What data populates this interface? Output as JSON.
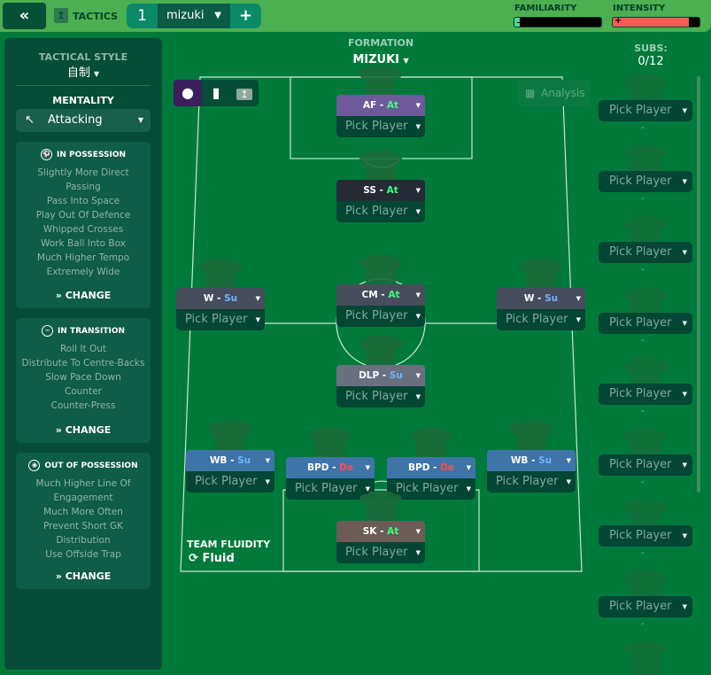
{
  "topbar": {
    "back_icon": "double-chevron-left",
    "tactics_label": "TACTICS",
    "tab_number": "1",
    "tab_name": "mizuki",
    "add_label": "+",
    "familiarity_label": "FAMILIARITY",
    "familiarity_level": 0.06,
    "intensity_label": "INTENSITY",
    "intensity_level": 0.88,
    "familiarity_color": "#4fd6a0",
    "intensity_color": "#ff5a5a"
  },
  "left": {
    "style_label": "TACTICAL STYLE",
    "style_value": "自制",
    "mentality_label": "MENTALITY",
    "mentality_value": "Attacking",
    "sections": [
      {
        "title": "IN POSSESSION",
        "items": [
          "Slightly More Direct",
          "Passing",
          "Pass Into Space",
          "Play Out Of Defence",
          "Whipped Crosses",
          "Work Ball Into Box",
          "Much Higher Tempo",
          "Extremely Wide"
        ],
        "change": "CHANGE"
      },
      {
        "title": "IN TRANSITION",
        "items": [
          "Roll It Out",
          "Distribute To Centre-Backs",
          "Slow Pace Down",
          "Counter",
          "Counter-Press"
        ],
        "change": "CHANGE"
      },
      {
        "title": "OUT OF POSSESSION",
        "items": [
          "Much Higher Line Of",
          "Engagement",
          "Much More Often",
          "Prevent Short GK",
          "Distribution",
          "Use Offside Trap"
        ],
        "change": "CHANGE"
      }
    ]
  },
  "formation": {
    "label": "FORMATION",
    "name": "MIZUKI",
    "analysis": "Analysis",
    "fluidity_label": "TEAM FLUIDITY",
    "fluidity_value": "Fluid"
  },
  "positions": [
    {
      "role": "AF",
      "duty": "At",
      "pick": "Pick Player",
      "color": "#6e5a9a"
    },
    {
      "role": "SS",
      "duty": "At",
      "pick": "Pick Player",
      "color": "#262a36"
    },
    {
      "role": "W",
      "duty": "Su",
      "pick": "Pick Player",
      "color": "#474d5c"
    },
    {
      "role": "CM",
      "duty": "At",
      "pick": "Pick Player",
      "color": "#474d5c"
    },
    {
      "role": "W",
      "duty": "Su",
      "pick": "Pick Player",
      "color": "#474d5c"
    },
    {
      "role": "DLP",
      "duty": "Su",
      "pick": "Pick Player",
      "color": "#6a7080"
    },
    {
      "role": "WB",
      "duty": "Su",
      "pick": "Pick Player",
      "color": "#3f74a8"
    },
    {
      "role": "BPD",
      "duty": "De",
      "pick": "Pick Player",
      "color": "#3f74a8"
    },
    {
      "role": "BPD",
      "duty": "De",
      "pick": "Pick Player",
      "color": "#3f74a8"
    },
    {
      "role": "WB",
      "duty": "Su",
      "pick": "Pick Player",
      "color": "#3f74a8"
    },
    {
      "role": "SK",
      "duty": "At",
      "pick": "Pick Player",
      "color": "#6b5d55"
    }
  ],
  "subs": {
    "label": "SUBS:",
    "count": "0/12",
    "pick": "Pick Player",
    "dash": "-"
  }
}
